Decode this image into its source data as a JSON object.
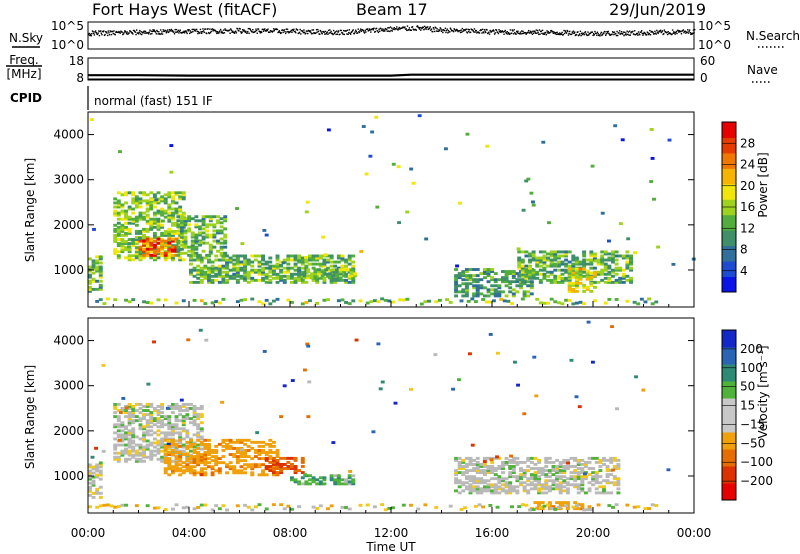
{
  "header": {
    "site": "Fort Hays West (fitACF)",
    "beam": "Beam 17",
    "date": "29/Jun/2019"
  },
  "noise_panel": {
    "left_label": "N.Sky",
    "right_label": "N.Search",
    "left_ticks": [
      "10^5",
      "10^0"
    ],
    "right_ticks": [
      "10^5",
      "10^0"
    ]
  },
  "freq_panel": {
    "left_label_1": "Freq.",
    "left_label_2": "[MHz]",
    "right_label": "Nave",
    "left_ticks": [
      "18",
      "8"
    ],
    "right_ticks": [
      "60",
      "0"
    ]
  },
  "cpid_panel": {
    "label": "CPID",
    "mode_text": "normal (fast) 151 IF"
  },
  "x_axis": {
    "label": "Time UT",
    "ticks": [
      "00:00",
      "04:00",
      "08:00",
      "12:00",
      "16:00",
      "20:00",
      "00:00"
    ]
  },
  "colors": {
    "power": [
      "#0a14e6",
      "#1e4bd2",
      "#2f6f9a",
      "#3f8f6a",
      "#52ad3c",
      "#9ed21e",
      "#f0e60a",
      "#f5b400",
      "#f07800",
      "#e63c00",
      "#e60000"
    ],
    "velocity": [
      "#1428c8",
      "#2a64b4",
      "#2e8a74",
      "#4fb23a",
      "#b9b9b9",
      "#f0c81e",
      "#f0a00a",
      "#e66e00",
      "#dc3200",
      "#e60000"
    ],
    "velocity_box_order": [
      "#1428c8",
      "#2a64b4",
      "#2e8a74",
      "#4fb23a",
      "#c8c8c8",
      "#c8c8c8",
      "#f0a00a",
      "#e66e00",
      "#dc3200",
      "#e60000"
    ]
  },
  "chart_data": [
    {
      "type": "heatmap",
      "name": "power",
      "ylabel": "Slant Range [km]",
      "xlabel": "",
      "x_range_hours": [
        0,
        24
      ],
      "ylim": [
        180,
        4500
      ],
      "yticks": [
        1000,
        2000,
        3000,
        4000
      ],
      "colorbar": {
        "label": "Power [dB]",
        "ticks": [
          "28",
          "24",
          "20",
          "16",
          "12",
          "8",
          "4"
        ],
        "range": [
          0,
          30
        ]
      },
      "echo_regions": [
        {
          "t_start": 0.0,
          "t_end": 0.5,
          "range_min": 500,
          "range_max": 1300,
          "power_db": 12
        },
        {
          "t_start": 1.0,
          "t_end": 3.8,
          "range_min": 1200,
          "range_max": 2700,
          "power_db": 14
        },
        {
          "t_start": 2.0,
          "t_end": 3.5,
          "range_min": 1300,
          "range_max": 1700,
          "power_db": 26
        },
        {
          "t_start": 3.5,
          "t_end": 5.5,
          "range_min": 1300,
          "range_max": 2200,
          "power_db": 12
        },
        {
          "t_start": 4.0,
          "t_end": 10.5,
          "range_min": 700,
          "range_max": 1300,
          "power_db": 12
        },
        {
          "t_start": 8.5,
          "t_end": 10.5,
          "range_min": 800,
          "range_max": 1000,
          "power_db": 14
        },
        {
          "t_start": 14.5,
          "t_end": 17.5,
          "range_min": 400,
          "range_max": 1000,
          "power_db": 10
        },
        {
          "t_start": 17.0,
          "t_end": 21.5,
          "range_min": 700,
          "range_max": 1400,
          "power_db": 12
        },
        {
          "t_start": 19.0,
          "t_end": 20.0,
          "range_min": 500,
          "range_max": 1000,
          "power_db": 18
        }
      ]
    },
    {
      "type": "heatmap",
      "name": "velocity",
      "ylabel": "Slant Range [km]",
      "xlabel": "Time UT",
      "x_range_hours": [
        0,
        24
      ],
      "ylim": [
        180,
        4500
      ],
      "yticks": [
        1000,
        2000,
        3000,
        4000
      ],
      "colorbar": {
        "label": "Velocity [m s⁻¹]",
        "ticks": [
          "200",
          "100",
          "50",
          "15",
          "−15",
          "−50",
          "−100",
          "−200"
        ],
        "range": [
          -250,
          250
        ]
      },
      "echo_regions": [
        {
          "t_start": 0.0,
          "t_end": 0.5,
          "range_min": 500,
          "range_max": 1300,
          "velocity": 0
        },
        {
          "t_start": 1.0,
          "t_end": 4.5,
          "range_min": 1300,
          "range_max": 2600,
          "velocity": 0
        },
        {
          "t_start": 3.0,
          "t_end": 7.5,
          "range_min": 1000,
          "range_max": 1800,
          "velocity": -60
        },
        {
          "t_start": 7.0,
          "t_end": 8.5,
          "range_min": 1050,
          "range_max": 1400,
          "velocity": -150
        },
        {
          "t_start": 8.0,
          "t_end": 10.5,
          "range_min": 800,
          "range_max": 1000,
          "velocity": 30
        },
        {
          "t_start": 14.5,
          "t_end": 21.0,
          "range_min": 600,
          "range_max": 1400,
          "velocity": 0
        },
        {
          "t_start": 17.5,
          "t_end": 20.0,
          "range_min": 250,
          "range_max": 400,
          "velocity": -60
        }
      ]
    },
    {
      "type": "line",
      "name": "noise",
      "series": [
        {
          "name": "N.Sky",
          "x": [
            0,
            2,
            4,
            6,
            8,
            10,
            12,
            13,
            14,
            16,
            18,
            20,
            22,
            24
          ],
          "values": [
            3.0,
            3.2,
            3.4,
            3.5,
            3.4,
            3.2,
            3.8,
            4.0,
            3.6,
            3.3,
            3.2,
            3.0,
            3.1,
            3.3
          ]
        }
      ],
      "ylim": [
        0,
        5
      ]
    },
    {
      "type": "line",
      "name": "frequency",
      "series": [
        {
          "name": "Freq.",
          "x": [
            0,
            2,
            4,
            6,
            8,
            10,
            12,
            12.8,
            14,
            16,
            18,
            20,
            22,
            24
          ],
          "values": [
            10.2,
            10.2,
            10.0,
            10.0,
            10.0,
            10.0,
            10.0,
            10.4,
            10.4,
            10.4,
            10.4,
            10.4,
            10.4,
            10.4
          ]
        }
      ],
      "ylim": [
        8,
        18
      ]
    }
  ]
}
